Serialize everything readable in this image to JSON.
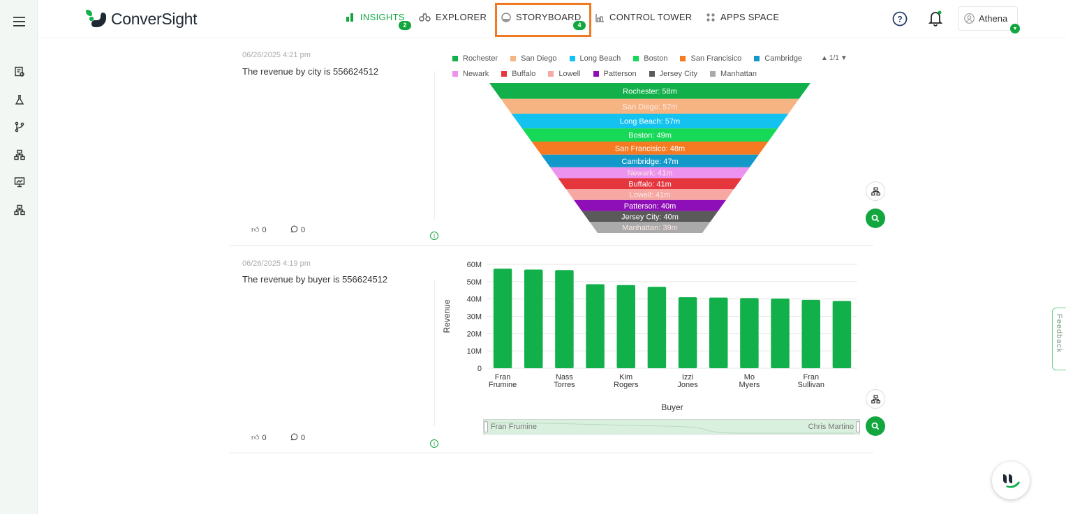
{
  "app": {
    "name": "ConverSight"
  },
  "nav": [
    {
      "label": "INSIGHTS",
      "badge": "2",
      "active": true,
      "icon": "bar-chart-icon"
    },
    {
      "label": "EXPLORER",
      "badge": "",
      "icon": "binoculars-icon"
    },
    {
      "label": "STORYBOARD",
      "badge": "4",
      "icon": "storyboard-icon"
    },
    {
      "label": "CONTROL TOWER",
      "badge": "",
      "icon": "control-tower-icon"
    },
    {
      "label": "APPS SPACE",
      "badge": "",
      "icon": "apps-grid-icon"
    }
  ],
  "user": {
    "name": "Athena"
  },
  "colors": {
    "accent": "#12a63f",
    "highlight": "#f07a22"
  },
  "cards": [
    {
      "timestamp": "06/26/2025 4:21 pm",
      "description": "The revenue by city is 556624512",
      "likes": "0",
      "comments": "0"
    },
    {
      "timestamp": "06/26/2025 4:19 pm",
      "description": "The revenue by buyer is 556624512",
      "likes": "0",
      "comments": "0"
    }
  ],
  "legend_pager": "1/1",
  "chart_data": [
    {
      "type": "funnel",
      "series": [
        {
          "name": "Rochester",
          "label": "Rochester: 58m",
          "value": 58,
          "color": "#12b04a"
        },
        {
          "name": "San Diego",
          "label": "San Diego: 57m",
          "value": 57,
          "color": "#f7b483"
        },
        {
          "name": "Long Beach",
          "label": "Long Beach: 57m",
          "value": 57,
          "color": "#14c2f0"
        },
        {
          "name": "Boston",
          "label": "Boston: 49m",
          "value": 49,
          "color": "#16d957"
        },
        {
          "name": "San Francisico",
          "label": "San Francisico: 48m",
          "value": 48,
          "color": "#f57a22"
        },
        {
          "name": "Cambridge",
          "label": "Cambridge: 47m",
          "value": 47,
          "color": "#1399c9"
        },
        {
          "name": "Newark",
          "label": "Newark: 41m",
          "value": 41,
          "color": "#ec92ef"
        },
        {
          "name": "Buffalo",
          "label": "Buffalo: 41m",
          "value": 41,
          "color": "#e5353d"
        },
        {
          "name": "Lowell",
          "label": "Lowell: 41m",
          "value": 41,
          "color": "#f7a8a3"
        },
        {
          "name": "Patterson",
          "label": "Patterson: 40m",
          "value": 40,
          "color": "#8e0fb8"
        },
        {
          "name": "Jersey City",
          "label": "Jersey City: 40m",
          "value": 40,
          "color": "#5a5a5a"
        },
        {
          "name": "Manhattan",
          "label": "Manhattan: 39m",
          "value": 39,
          "color": "#aaaaaa"
        }
      ]
    },
    {
      "type": "bar",
      "xlabel": "Buyer",
      "ylabel": "Revenue",
      "ylim": [
        0,
        60
      ],
      "yticks": [
        "0",
        "10M",
        "20M",
        "30M",
        "40M",
        "50M",
        "60M"
      ],
      "color": "#12b04a",
      "values": [
        57.5,
        57,
        56.7,
        48.5,
        48,
        47,
        41,
        40.8,
        40.5,
        40.2,
        39.5,
        38.8
      ],
      "tick_labels": [
        {
          "index": 0,
          "line1": "Fran",
          "line2": "Frumine"
        },
        {
          "index": 2,
          "line1": "Nass",
          "line2": "Torres"
        },
        {
          "index": 4,
          "line1": "Kim",
          "line2": "Rogers"
        },
        {
          "index": 6,
          "line1": "Izzi",
          "line2": "Jones"
        },
        {
          "index": 8,
          "line1": "Mo",
          "line2": "Myers"
        },
        {
          "index": 10,
          "line1": "Fran",
          "line2": "Sullivan"
        }
      ],
      "zoom_start": "Fran Frumine",
      "zoom_end": "Chris Martino"
    }
  ],
  "feedback_label": "Feedback"
}
